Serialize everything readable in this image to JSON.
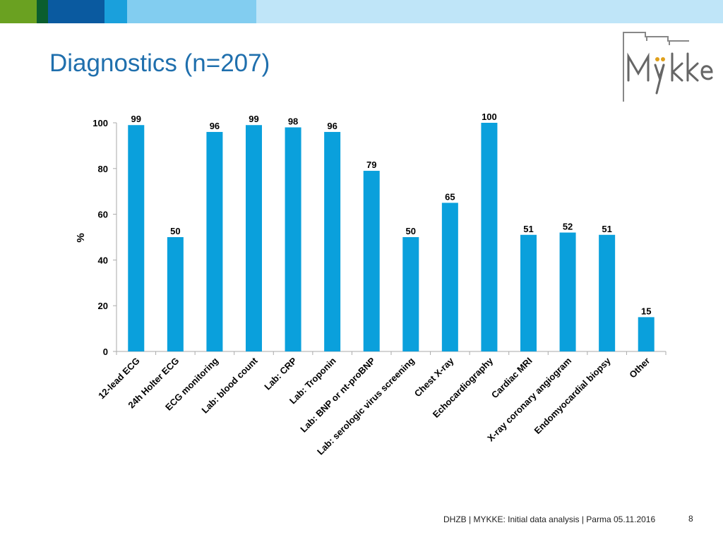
{
  "slide": {
    "title": "Diagnostics (n=207)",
    "footer": "DHZB | MYKKE: Initial data analysis | Parma 05.11.2016",
    "page_number": "8",
    "band_colors": [
      "#6aa121",
      "#0b5e2e",
      "#0a5aa0",
      "#1aa0dc",
      "#82cdf0",
      "#bfe5f8"
    ]
  },
  "logo": {
    "text": "Mykke",
    "color": "#555555",
    "accent": "#e0a01b"
  },
  "colors": {
    "bar": "#0aa0dc",
    "axis": "#aaaaaa",
    "label": "#000000"
  },
  "chart_data": {
    "type": "bar",
    "title": "",
    "xlabel": "",
    "ylabel": "%",
    "ylim": [
      0,
      100
    ],
    "yticks": [
      0,
      20,
      40,
      60,
      80,
      100
    ],
    "categories": [
      "12-lead ECG",
      "24h Holter ECG",
      "ECG monitoring",
      "Lab: blood count",
      "Lab: CRP",
      "Lab: Troponin",
      "Lab: BNP or nt-proBNP",
      "Lab: serologic virus screening",
      "Chest X-ray",
      "Echocardiography",
      "Cardiac MRI",
      "X-ray coronary angiogram",
      "Endomyocardial biopsy",
      "Other"
    ],
    "values": [
      99,
      50,
      96,
      99,
      98,
      96,
      79,
      50,
      65,
      100,
      51,
      52,
      51,
      15
    ],
    "grid": false,
    "legend": "none"
  }
}
